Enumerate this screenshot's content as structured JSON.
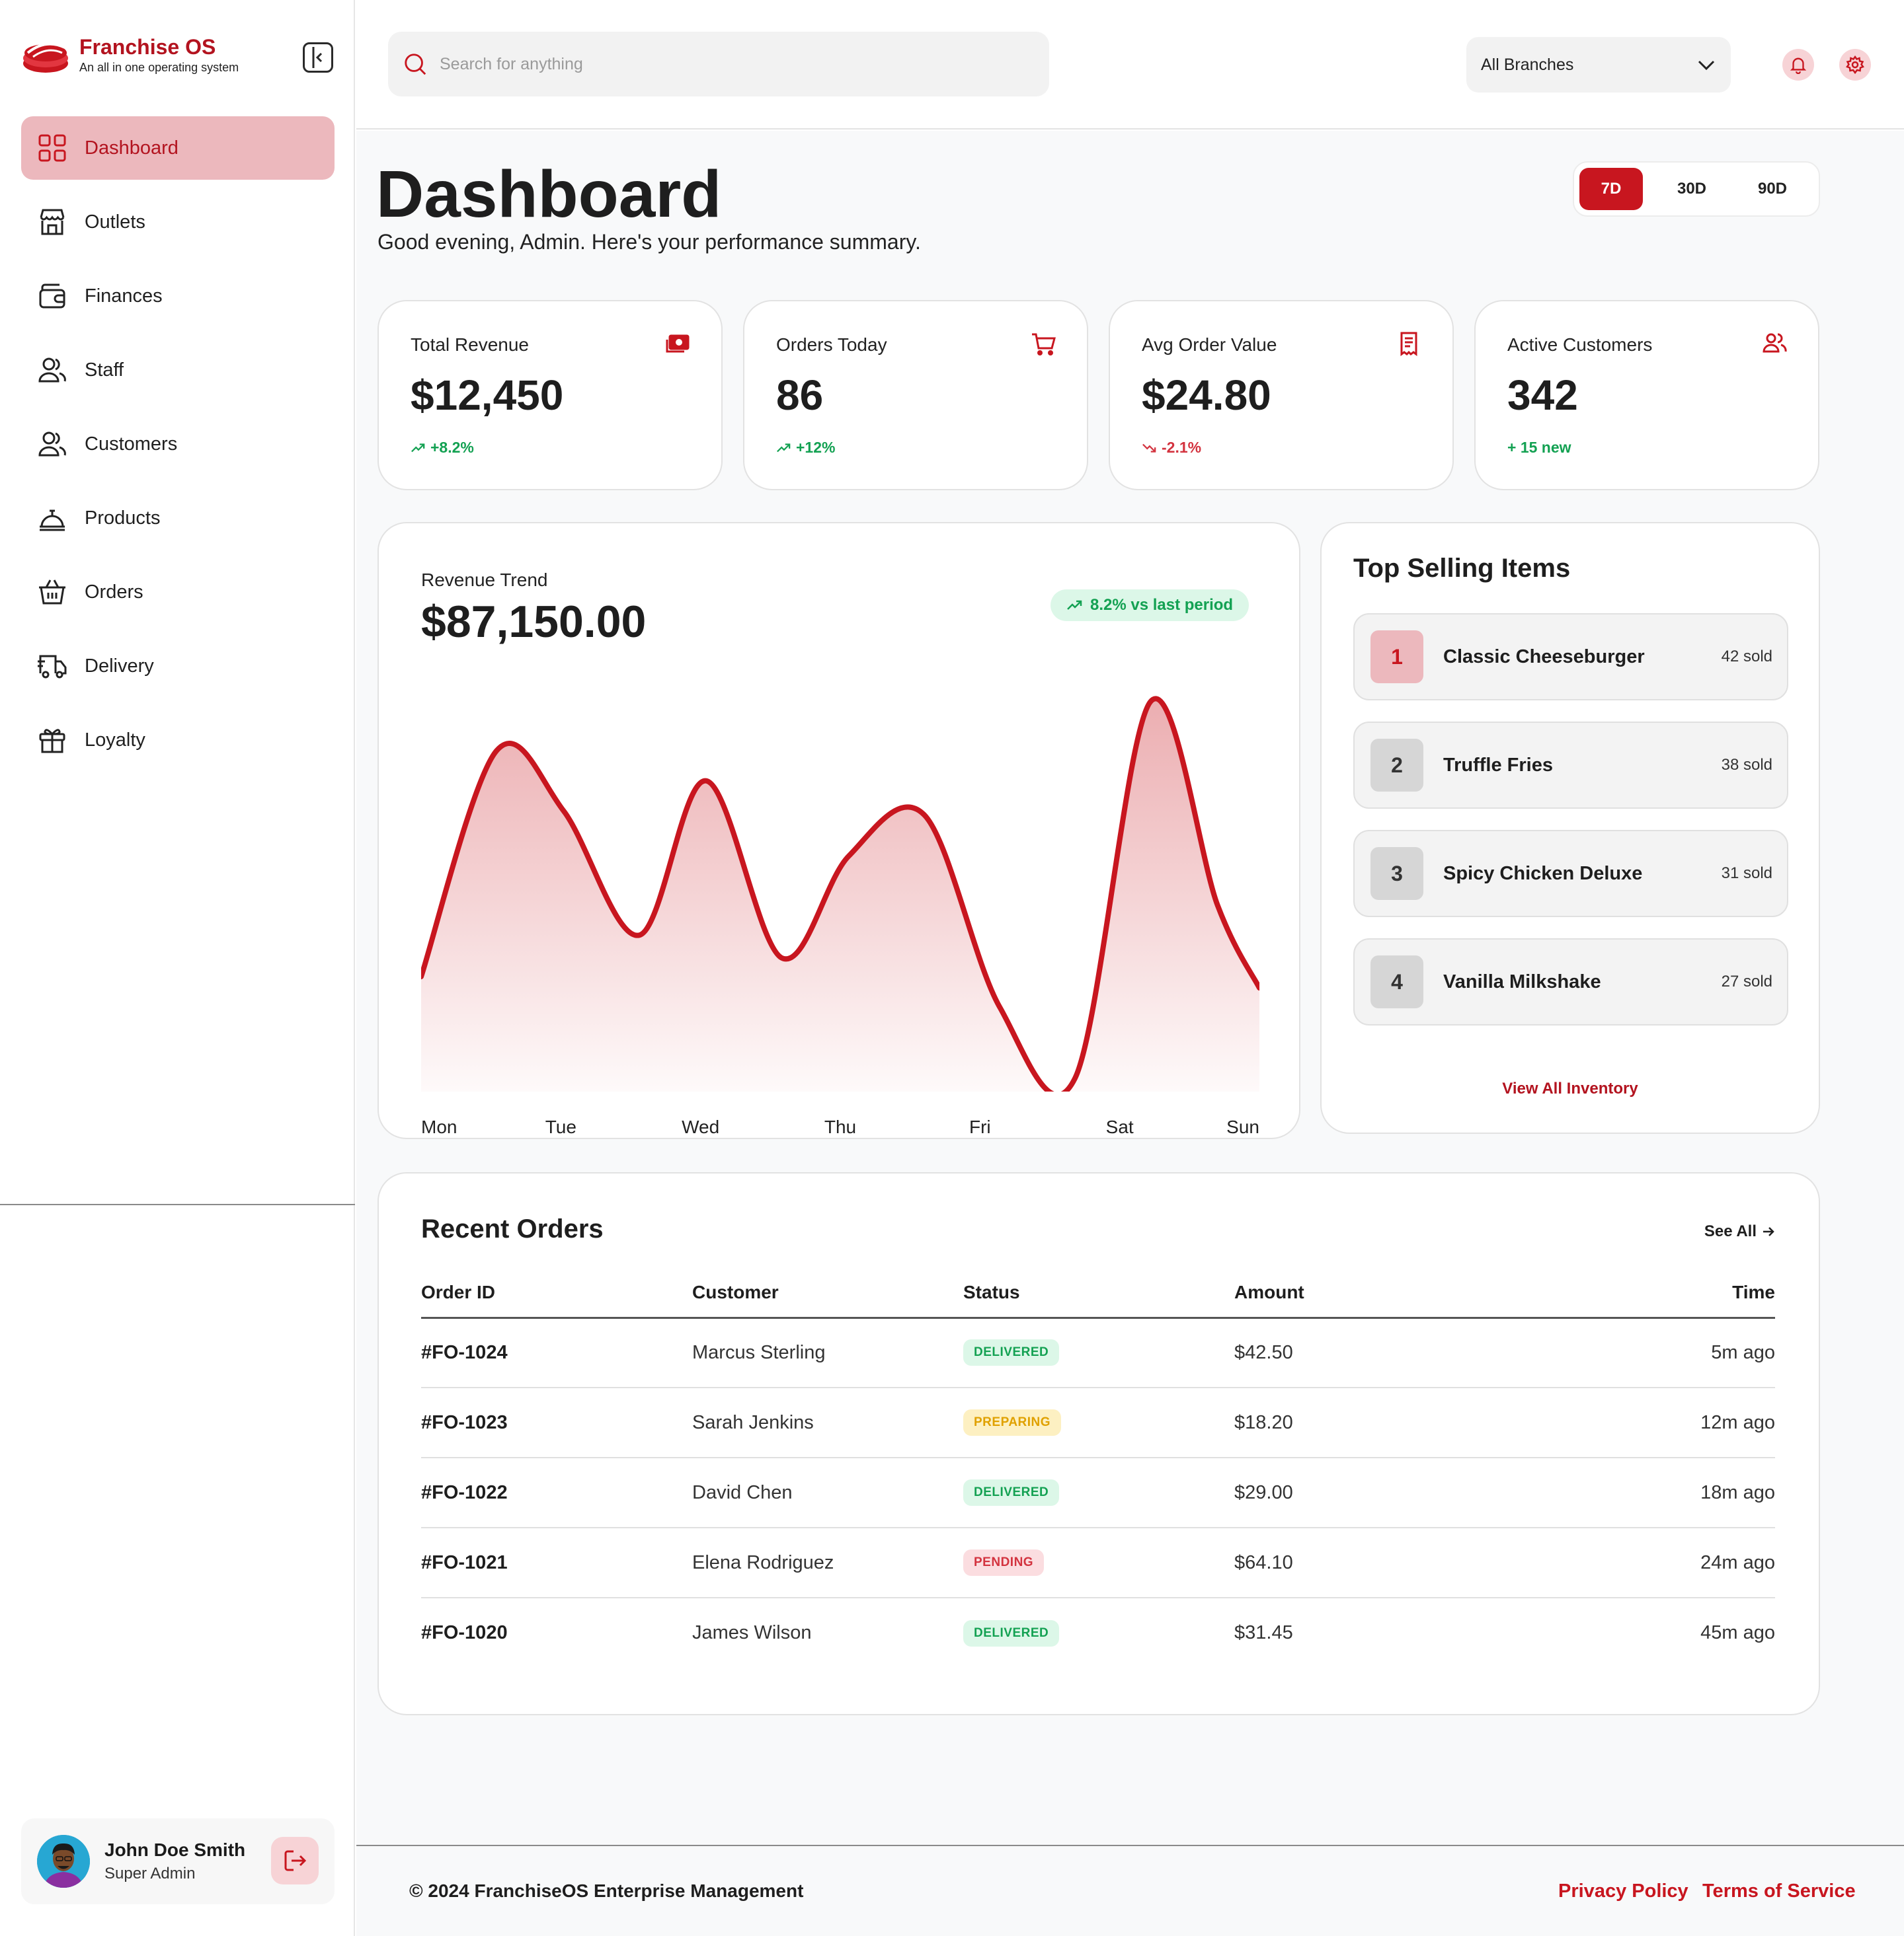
{
  "brand": {
    "name": "Franchise OS",
    "tagline": "An all in one operating system"
  },
  "sidebar": {
    "items": [
      {
        "label": "Dashboard",
        "icon": "grid-icon",
        "active": true
      },
      {
        "label": "Outlets",
        "icon": "store-icon"
      },
      {
        "label": "Finances",
        "icon": "wallet-icon"
      },
      {
        "label": "Staff",
        "icon": "users-icon"
      },
      {
        "label": "Customers",
        "icon": "users-icon"
      },
      {
        "label": "Products",
        "icon": "cloche-icon"
      },
      {
        "label": "Orders",
        "icon": "basket-icon"
      },
      {
        "label": "Delivery",
        "icon": "truck-icon"
      },
      {
        "label": "Loyalty",
        "icon": "gift-icon"
      }
    ],
    "user": {
      "name": "John Doe Smith",
      "role": "Super Admin"
    }
  },
  "header": {
    "search_placeholder": "Search for anything",
    "branch": "All Branches"
  },
  "page": {
    "title": "Dashboard",
    "subtitle": "Good evening, Admin. Here's your performance summary.",
    "ranges": [
      "7D",
      "30D",
      "90D"
    ],
    "active_range": "7D"
  },
  "kpis": [
    {
      "label": "Total Revenue",
      "value": "$12,450",
      "delta": "+8.2%",
      "trend": "up",
      "icon": "cash-icon"
    },
    {
      "label": "Orders Today",
      "value": "86",
      "delta": "+12%",
      "trend": "up",
      "icon": "cart-icon"
    },
    {
      "label": "Avg Order Value",
      "value": "$24.80",
      "delta": "-2.1%",
      "trend": "down",
      "icon": "receipt-icon"
    },
    {
      "label": "Active Customers",
      "value": "342",
      "delta": "+ 15 new",
      "trend": "new",
      "icon": "users-icon"
    }
  ],
  "revenue": {
    "label": "Revenue Trend",
    "value": "$87,150.00",
    "badge": "8.2% vs last period"
  },
  "chart_data": {
    "type": "area",
    "title": "Revenue Trend",
    "x": [
      "Mon",
      "Tue",
      "Wed",
      "Thu",
      "Fri",
      "Sat",
      "Sun"
    ],
    "y_points": [
      {
        "x": 0.0,
        "y": 0.27
      },
      {
        "x": 0.09,
        "y": 0.87
      },
      {
        "x": 0.17,
        "y": 0.71
      },
      {
        "x": 0.26,
        "y": 0.38
      },
      {
        "x": 0.34,
        "y": 0.79
      },
      {
        "x": 0.43,
        "y": 0.32
      },
      {
        "x": 0.51,
        "y": 0.59
      },
      {
        "x": 0.6,
        "y": 0.7
      },
      {
        "x": 0.69,
        "y": 0.19
      },
      {
        "x": 0.78,
        "y": 0.0
      },
      {
        "x": 0.87,
        "y": 1.0
      },
      {
        "x": 0.95,
        "y": 0.46
      },
      {
        "x": 1.0,
        "y": 0.24
      }
    ],
    "line_color": "#c8161f",
    "grid": false
  },
  "top_items": {
    "title": "Top Selling Items",
    "items": [
      {
        "rank": "1",
        "name": "Classic Cheeseburger",
        "sold": "42 sold"
      },
      {
        "rank": "2",
        "name": "Truffle Fries",
        "sold": "38 sold"
      },
      {
        "rank": "3",
        "name": "Spicy Chicken Deluxe",
        "sold": "31 sold"
      },
      {
        "rank": "4",
        "name": "Vanilla Milkshake",
        "sold": "27 sold"
      }
    ],
    "view_all": "View All Inventory"
  },
  "orders": {
    "title": "Recent Orders",
    "see_all": "See All",
    "columns": [
      "Order ID",
      "Customer",
      "Status",
      "Amount",
      "Time"
    ],
    "rows": [
      {
        "id": "#FO-1024",
        "customer": "Marcus Sterling",
        "status": "DELIVERED",
        "amount": "$42.50",
        "time": "5m ago"
      },
      {
        "id": "#FO-1023",
        "customer": "Sarah Jenkins",
        "status": "PREPARING",
        "amount": "$18.20",
        "time": "12m ago"
      },
      {
        "id": "#FO-1022",
        "customer": "David Chen",
        "status": "DELIVERED",
        "amount": "$29.00",
        "time": "18m ago"
      },
      {
        "id": "#FO-1021",
        "customer": "Elena Rodriguez",
        "status": "PENDING",
        "amount": "$64.10",
        "time": "24m ago"
      },
      {
        "id": "#FO-1020",
        "customer": "James Wilson",
        "status": "DELIVERED",
        "amount": "$31.45",
        "time": "45m ago"
      }
    ]
  },
  "footer": {
    "copyright": "© 2024 FranchiseOS Enterprise Management",
    "privacy": "Privacy Policy",
    "terms": "Terms of Service"
  },
  "colors": {
    "accent": "#c8161f",
    "accent_soft": "#ecb8bd",
    "success": "#13a152",
    "warning": "#e0a100",
    "danger": "#d3333f"
  }
}
